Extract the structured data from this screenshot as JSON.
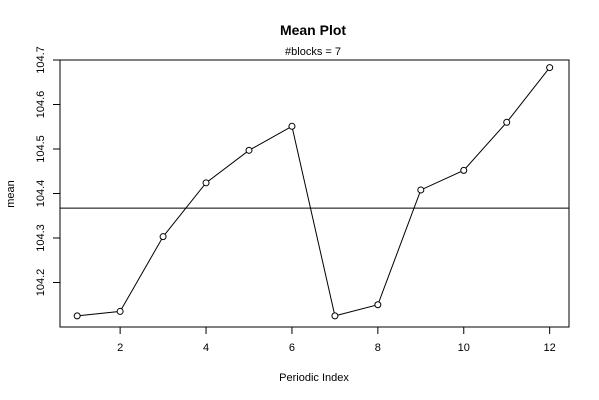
{
  "chart_data": {
    "type": "line",
    "title": "Mean Plot",
    "subtitle": "#blocks =  7",
    "xlabel": "Periodic Index",
    "ylabel": "mean",
    "x": [
      1,
      2,
      3,
      4,
      5,
      6,
      7,
      8,
      9,
      10,
      11,
      12
    ],
    "values": [
      104.125,
      104.135,
      104.303,
      104.424,
      104.497,
      104.551,
      104.125,
      104.15,
      104.408,
      104.452,
      104.56,
      104.683
    ],
    "xlim": [
      0.6,
      12.45
    ],
    "ylim": [
      104.1,
      104.7
    ],
    "xticks": [
      2,
      4,
      6,
      8,
      10,
      12
    ],
    "yticks": [
      104.2,
      104.3,
      104.4,
      104.5,
      104.6,
      104.7
    ],
    "reference_line": 104.367,
    "grid": false,
    "legend": "none"
  }
}
